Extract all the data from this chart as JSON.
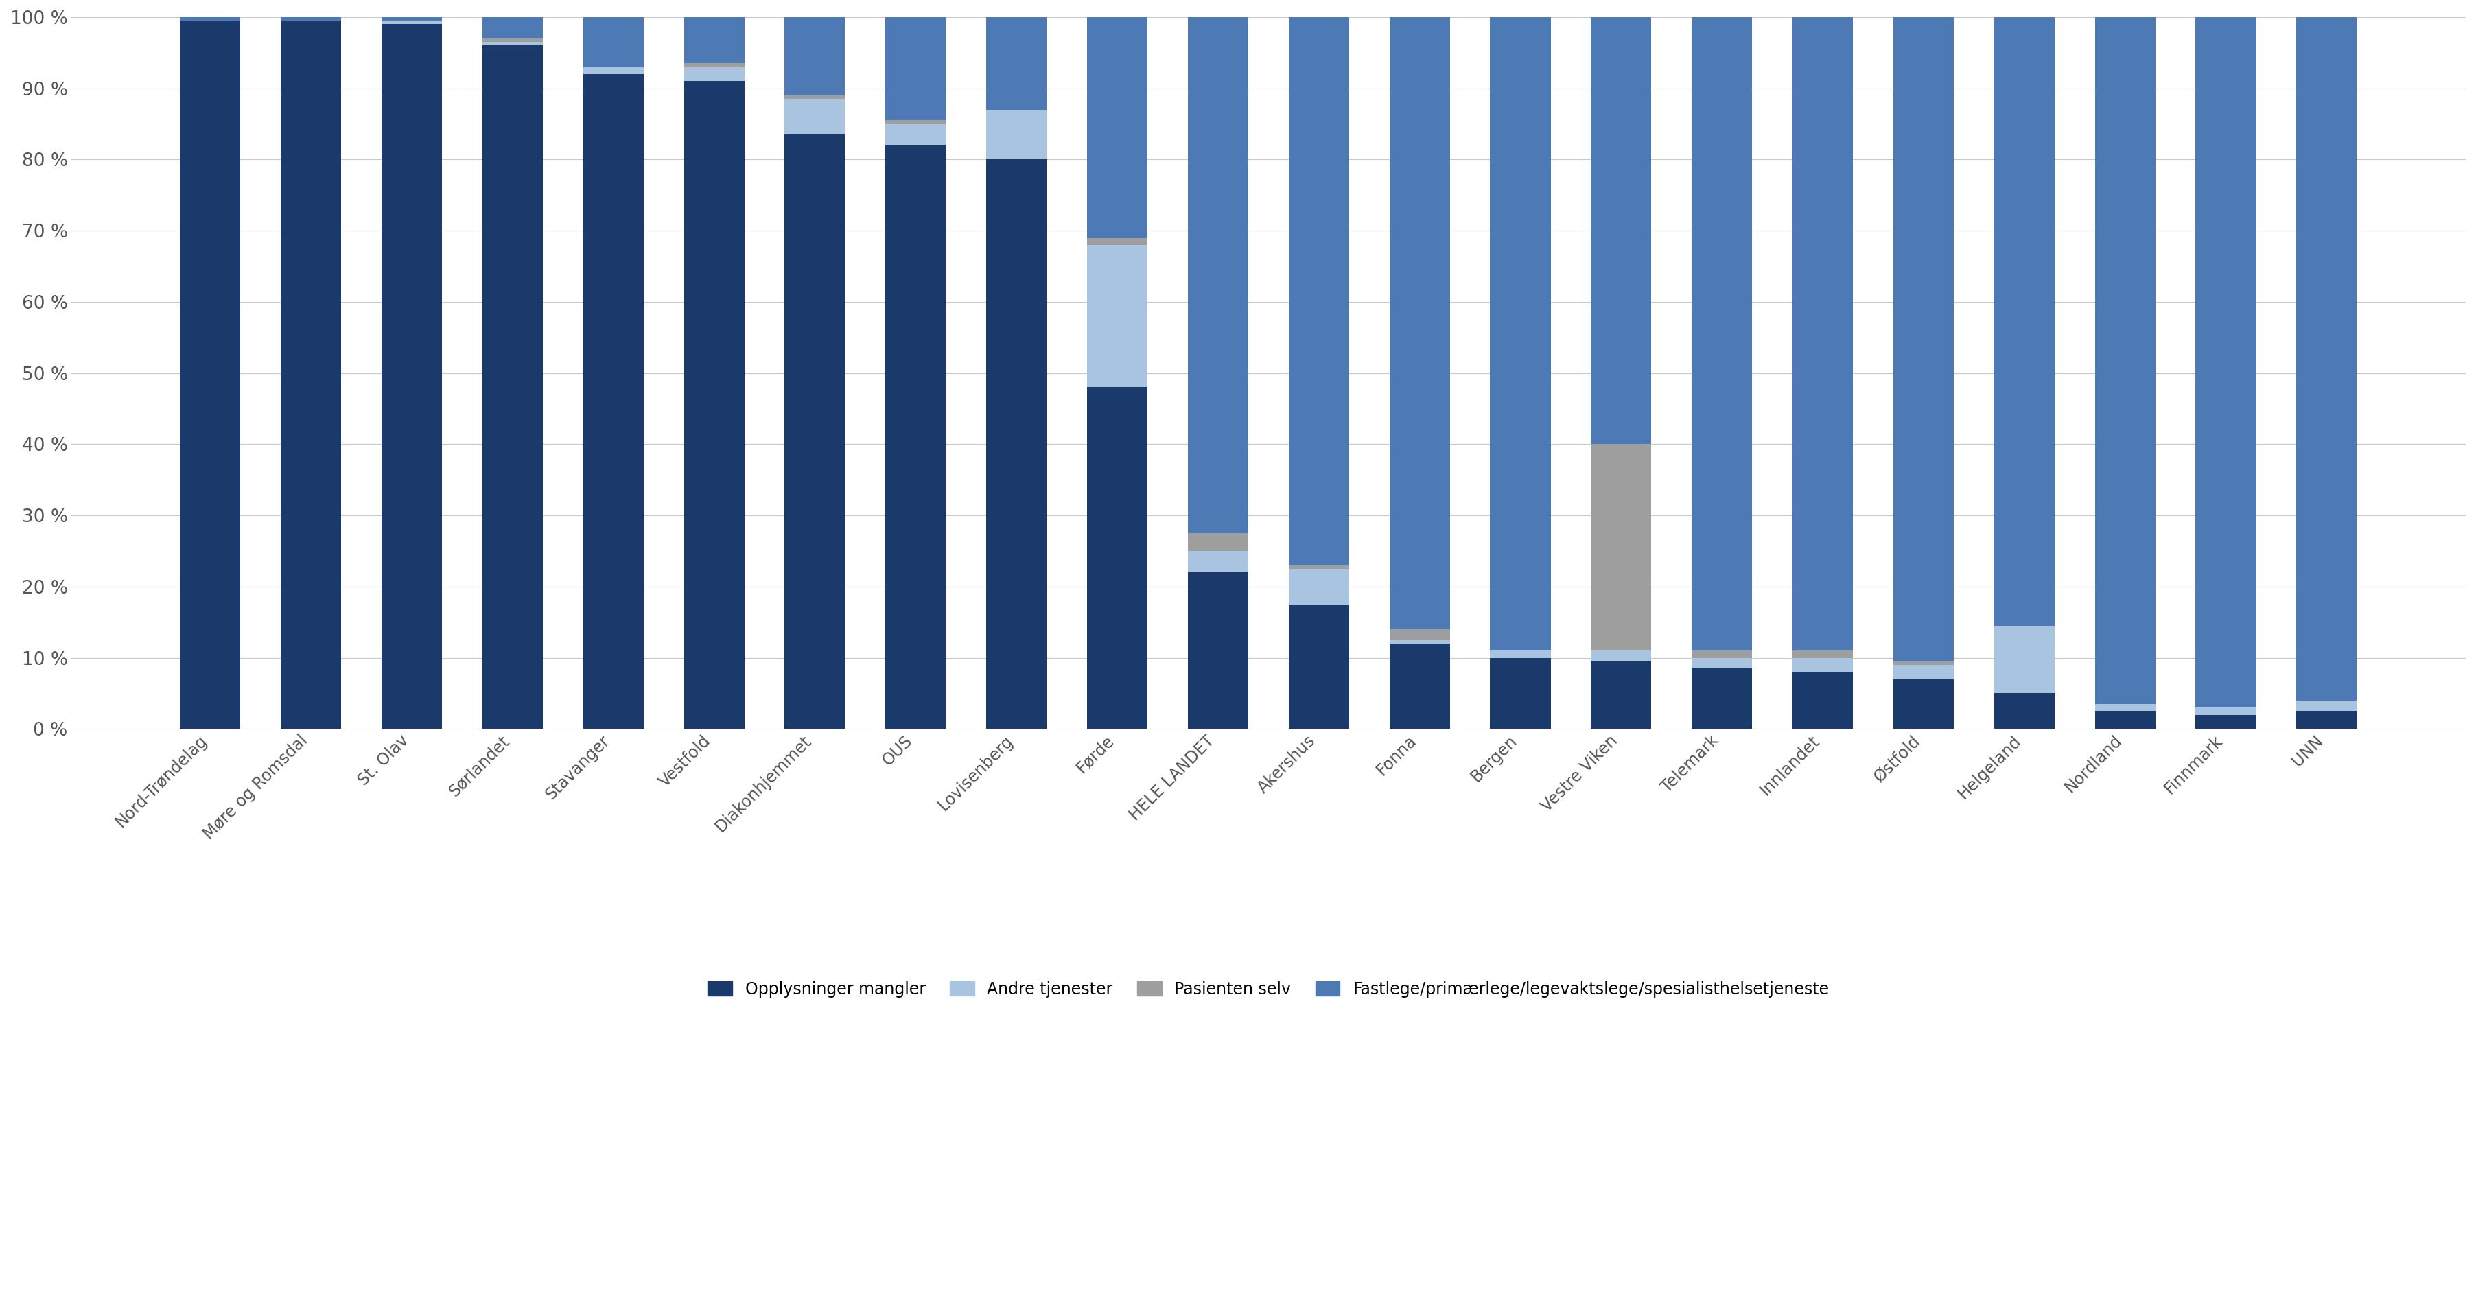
{
  "categories": [
    "Nord-Trøndelag",
    "Møre og Romsdal",
    "St. Olav",
    "Sørlandet",
    "Stavanger",
    "Vestfold",
    "Diakonhjemmet",
    "OUS",
    "Lovisenberg",
    "Førde",
    "HELE LANDET",
    "Akershus",
    "Fonna",
    "Bergen",
    "Vestre Viken",
    "Telemark",
    "Innlandet",
    "Østfold",
    "Helgeland",
    "Nordland",
    "Finnmark",
    "UNN"
  ],
  "series": {
    "Opplysninger mangler": [
      99.5,
      99.5,
      99.0,
      96.0,
      92.0,
      91.0,
      83.5,
      82.0,
      80.0,
      48.0,
      22.0,
      17.5,
      12.0,
      10.0,
      9.5,
      8.5,
      8.0,
      7.0,
      5.0,
      2.5,
      2.0,
      2.5
    ],
    "Andre tjenester": [
      0.0,
      0.0,
      0.5,
      0.5,
      1.0,
      2.0,
      5.0,
      3.0,
      7.0,
      20.0,
      3.0,
      5.0,
      0.5,
      1.0,
      1.5,
      1.5,
      2.0,
      2.0,
      9.5,
      1.0,
      1.0,
      1.5
    ],
    "Pasienten selv": [
      0.0,
      0.0,
      0.0,
      0.5,
      0.0,
      0.5,
      0.5,
      0.5,
      0.0,
      1.0,
      2.5,
      0.5,
      1.5,
      0.0,
      29.0,
      1.0,
      1.0,
      0.5,
      0.0,
      0.0,
      0.0,
      0.0
    ],
    "Fastlege/primærlege/legevaktslege/spesialisthelsetjeneste": [
      0.5,
      0.5,
      0.5,
      3.0,
      7.0,
      6.5,
      11.0,
      14.5,
      13.0,
      31.0,
      72.5,
      77.0,
      86.0,
      89.0,
      60.0,
      89.0,
      89.0,
      90.5,
      85.5,
      96.5,
      97.0,
      96.0
    ]
  },
  "colors": {
    "Opplysninger mangler": "#1a3a6b",
    "Andre tjenester": "#a8c4e0",
    "Pasienten selv": "#9e9e9e",
    "Fastlege/primærlege/legevaktslege/spesialisthelsetjeneste": "#4d7ab5"
  },
  "ylim": [
    0,
    100
  ],
  "ytick_labels": [
    "0 %",
    "10 %",
    "20 %",
    "30 %",
    "40 %",
    "50 %",
    "60 %",
    "70 %",
    "80 %",
    "90 %",
    "100 %"
  ],
  "ytick_values": [
    0,
    10,
    20,
    30,
    40,
    50,
    60,
    70,
    80,
    90,
    100
  ],
  "background_color": "#ffffff",
  "grid_color": "#c8c8c8"
}
